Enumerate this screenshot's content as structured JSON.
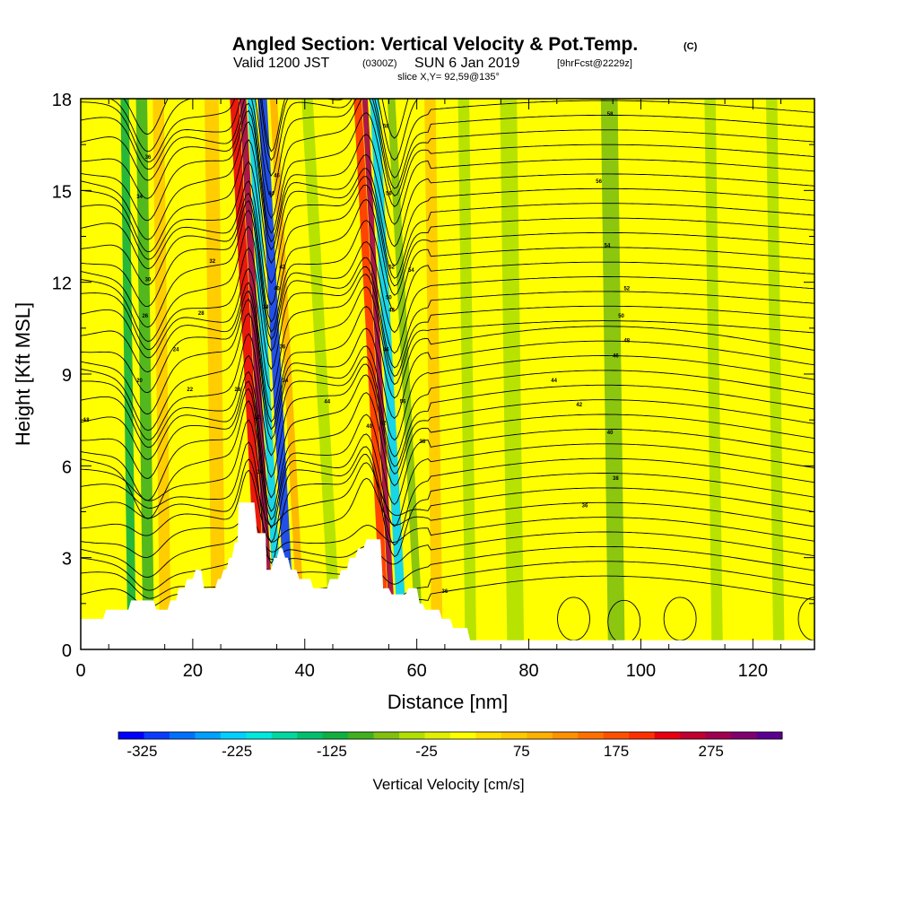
{
  "chart_data": {
    "type": "heatmap",
    "title": "Angled Section: Vertical Velocity & Pot.Temp.",
    "title_mark": "(C)",
    "subtitle": {
      "prefix": "Valid 1200 JST",
      "utc": "(0300Z)",
      "date": "SUN 6 Jan 2019",
      "forecast": "[9hrFcst@2229z]"
    },
    "slice_label": "slice X,Y= 92,59@135°",
    "xlabel": "Distance [nm]",
    "ylabel": "Height [Kft MSL]",
    "xlim": [
      0,
      131
    ],
    "ylim": [
      0,
      18
    ],
    "x_ticks": [
      "0",
      "20",
      "40",
      "60",
      "80",
      "100",
      "120"
    ],
    "y_ticks": [
      "0",
      "3",
      "6",
      "9",
      "12",
      "15",
      "18"
    ],
    "colorbar": {
      "label": "Vertical Velocity [cm/s]",
      "tick_labels": [
        "-325",
        "-225",
        "-125",
        "-25",
        "75",
        "175",
        "275"
      ],
      "colors": [
        "#0000ff",
        "#0a3cff",
        "#0070ff",
        "#00a0ff",
        "#00d0ff",
        "#00e8e0",
        "#00d8a0",
        "#00c070",
        "#10b040",
        "#40b020",
        "#80c010",
        "#b0e000",
        "#e0f000",
        "#ffff00",
        "#ffe000",
        "#ffc800",
        "#ffb000",
        "#ff9000",
        "#ff7000",
        "#ff5000",
        "#ff3000",
        "#e80010",
        "#c00030",
        "#a00050",
        "#800070",
        "#5a0090"
      ]
    },
    "vertical_velocity_bands": [
      {
        "x": 8.5,
        "width": 1.5,
        "w": -130
      },
      {
        "x": 11.5,
        "width": 2.0,
        "w": -100
      },
      {
        "x": 14.5,
        "width": 2.0,
        "w": 60
      },
      {
        "x": 24,
        "width": 2.5,
        "w": 60
      },
      {
        "x": 30,
        "width": 1.6,
        "w": 220
      },
      {
        "x": 31.5,
        "width": 1.2,
        "w": 290
      },
      {
        "x": 33,
        "width": 1.4,
        "w": -230
      },
      {
        "x": 35,
        "width": 1.6,
        "w": -300
      },
      {
        "x": 37,
        "width": 1.3,
        "w": 100
      },
      {
        "x": 43,
        "width": 2.0,
        "w": -40
      },
      {
        "x": 52,
        "width": 1.4,
        "w": 200
      },
      {
        "x": 53.3,
        "width": 1.0,
        "w": 270
      },
      {
        "x": 55,
        "width": 1.6,
        "w": -220
      },
      {
        "x": 58,
        "width": 1.4,
        "w": -80
      },
      {
        "x": 63,
        "width": 2.0,
        "w": 60
      },
      {
        "x": 69,
        "width": 2.0,
        "w": -50
      },
      {
        "x": 77,
        "width": 3.0,
        "w": -40
      },
      {
        "x": 95,
        "width": 3.0,
        "w": -60
      },
      {
        "x": 113,
        "width": 2.0,
        "w": -40
      },
      {
        "x": 124,
        "width": 2.0,
        "w": -35
      }
    ],
    "terrain_kft": [
      [
        0,
        1.0
      ],
      [
        4,
        1.0
      ],
      [
        4.5,
        1.3
      ],
      [
        8.5,
        1.3
      ],
      [
        9,
        1.6
      ],
      [
        13,
        1.6
      ],
      [
        13.5,
        1.3
      ],
      [
        15.5,
        1.3
      ],
      [
        16,
        1.6
      ],
      [
        17,
        1.6
      ],
      [
        17.5,
        2.0
      ],
      [
        18.5,
        2.0
      ],
      [
        19,
        2.3
      ],
      [
        20,
        2.3
      ],
      [
        20.5,
        2.6
      ],
      [
        21.5,
        2.6
      ],
      [
        22,
        2.0
      ],
      [
        24,
        2.0
      ],
      [
        24.5,
        2.3
      ],
      [
        25,
        2.3
      ],
      [
        25.5,
        2.6
      ],
      [
        26,
        2.6
      ],
      [
        26.5,
        3.0
      ],
      [
        27,
        3.0
      ],
      [
        27.5,
        3.5
      ],
      [
        28,
        3.5
      ],
      [
        28.2,
        4.8
      ],
      [
        31,
        4.8
      ],
      [
        31.5,
        3.8
      ],
      [
        33,
        3.8
      ],
      [
        33.2,
        2.6
      ],
      [
        34,
        2.6
      ],
      [
        34.5,
        3.0
      ],
      [
        35,
        3.0
      ],
      [
        35.5,
        3.3
      ],
      [
        36,
        3.3
      ],
      [
        36.5,
        3.0
      ],
      [
        37,
        3.0
      ],
      [
        37.5,
        2.6
      ],
      [
        38.5,
        2.6
      ],
      [
        39,
        2.3
      ],
      [
        41,
        2.3
      ],
      [
        41.5,
        2.0
      ],
      [
        44,
        2.0
      ],
      [
        44.5,
        2.3
      ],
      [
        46,
        2.3
      ],
      [
        46.5,
        2.6
      ],
      [
        47.5,
        2.6
      ],
      [
        48,
        3.0
      ],
      [
        49,
        3.0
      ],
      [
        49.5,
        3.3
      ],
      [
        50.5,
        3.3
      ],
      [
        51,
        3.6
      ],
      [
        53.5,
        3.6
      ],
      [
        54,
        2.0
      ],
      [
        55,
        2.0
      ],
      [
        55.5,
        1.8
      ],
      [
        58,
        1.8
      ],
      [
        58.5,
        2.0
      ],
      [
        60,
        2.0
      ],
      [
        60.5,
        1.5
      ],
      [
        61,
        1.5
      ],
      [
        61.5,
        1.3
      ],
      [
        64,
        1.3
      ],
      [
        64.5,
        1.0
      ],
      [
        66,
        1.0
      ],
      [
        66.5,
        0.7
      ],
      [
        69,
        0.7
      ],
      [
        69.5,
        0.3
      ],
      [
        131,
        0.3
      ]
    ],
    "theta_contour_labels": [
      {
        "text": "58",
        "x": 94.5,
        "y": 17.5
      },
      {
        "text": "56",
        "x": 92.5,
        "y": 15.3
      },
      {
        "text": "54",
        "x": 94.0,
        "y": 13.2
      },
      {
        "text": "52",
        "x": 97.5,
        "y": 11.8
      },
      {
        "text": "50",
        "x": 96.5,
        "y": 10.9
      },
      {
        "text": "48",
        "x": 97.5,
        "y": 10.1
      },
      {
        "text": "46",
        "x": 95.5,
        "y": 9.6
      },
      {
        "text": "44",
        "x": 84.5,
        "y": 8.8
      },
      {
        "text": "42",
        "x": 89.0,
        "y": 8.0
      },
      {
        "text": "40",
        "x": 94.5,
        "y": 7.1
      },
      {
        "text": "38",
        "x": 95.5,
        "y": 5.6
      },
      {
        "text": "36",
        "x": 90.0,
        "y": 4.7
      },
      {
        "text": "18",
        "x": 1.0,
        "y": 7.5
      },
      {
        "text": "20",
        "x": 10.5,
        "y": 8.8
      },
      {
        "text": "22",
        "x": 19.5,
        "y": 8.5
      },
      {
        "text": "24",
        "x": 17.0,
        "y": 9.8
      },
      {
        "text": "26",
        "x": 11.5,
        "y": 10.9
      },
      {
        "text": "28",
        "x": 21.5,
        "y": 11.0
      },
      {
        "text": "30",
        "x": 12.0,
        "y": 12.1
      },
      {
        "text": "32",
        "x": 23.5,
        "y": 12.7
      },
      {
        "text": "34",
        "x": 10.5,
        "y": 14.8
      },
      {
        "text": "36",
        "x": 12.0,
        "y": 16.1
      },
      {
        "text": "28",
        "x": 28.0,
        "y": 8.5
      },
      {
        "text": "30",
        "x": 32.0,
        "y": 5.8
      },
      {
        "text": "32",
        "x": 31.5,
        "y": 7.6
      },
      {
        "text": "34",
        "x": 36.5,
        "y": 8.8
      },
      {
        "text": "36",
        "x": 36.0,
        "y": 9.9
      },
      {
        "text": "38",
        "x": 33.0,
        "y": 11.2
      },
      {
        "text": "40",
        "x": 35.0,
        "y": 11.8
      },
      {
        "text": "42",
        "x": 36.0,
        "y": 12.5
      },
      {
        "text": "44",
        "x": 34.0,
        "y": 14.9
      },
      {
        "text": "46",
        "x": 35.0,
        "y": 15.5
      },
      {
        "text": "44",
        "x": 44.0,
        "y": 8.1
      },
      {
        "text": "40",
        "x": 51.5,
        "y": 7.3
      },
      {
        "text": "42",
        "x": 54.0,
        "y": 7.4
      },
      {
        "text": "46",
        "x": 54.5,
        "y": 9.8
      },
      {
        "text": "48",
        "x": 55.5,
        "y": 11.1
      },
      {
        "text": "50",
        "x": 55.0,
        "y": 11.5
      },
      {
        "text": "52",
        "x": 55.5,
        "y": 12.5
      },
      {
        "text": "54",
        "x": 59.0,
        "y": 12.4
      },
      {
        "text": "56",
        "x": 55.0,
        "y": 14.9
      },
      {
        "text": "58",
        "x": 54.5,
        "y": 17.1
      },
      {
        "text": "56",
        "x": 57.5,
        "y": 8.1
      },
      {
        "text": "38",
        "x": 61.0,
        "y": 6.8
      },
      {
        "text": "36",
        "x": 65.0,
        "y": 1.9
      }
    ]
  }
}
